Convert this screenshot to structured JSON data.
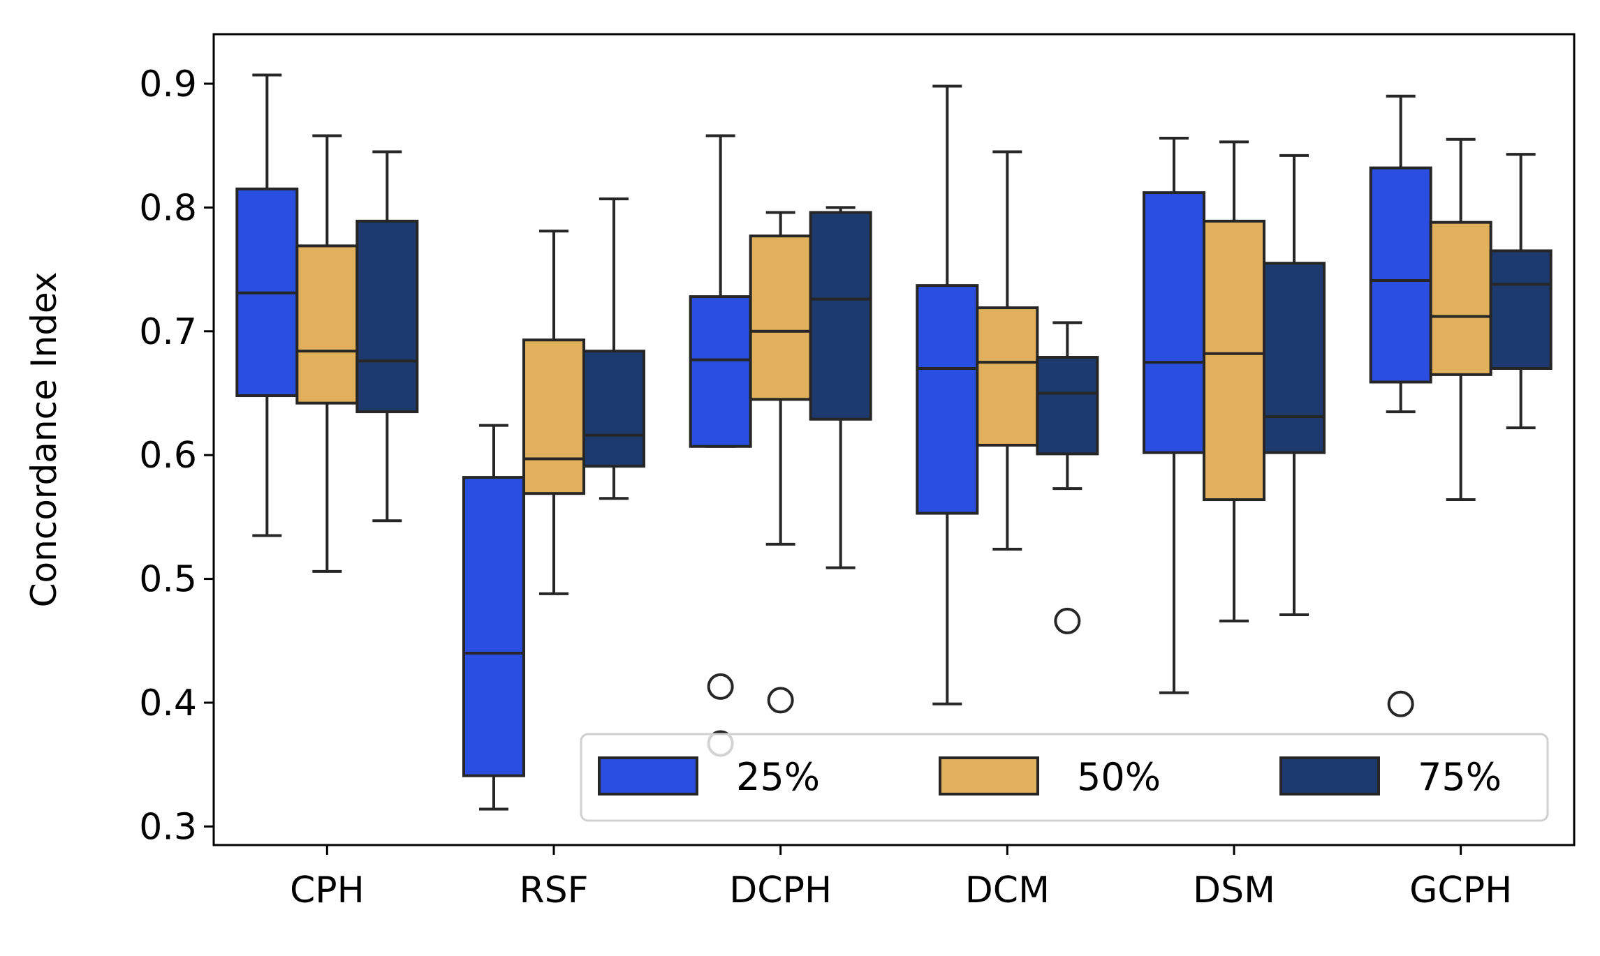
{
  "chart_data": {
    "type": "box",
    "ylabel": "Concordance Index",
    "xlabel": "",
    "ylim": [
      0.285,
      0.94
    ],
    "yticks": [
      "0.3",
      "0.4",
      "0.5",
      "0.6",
      "0.7",
      "0.8",
      "0.9"
    ],
    "categories": [
      "CPH",
      "RSF",
      "DCPH",
      "DCM",
      "DSM",
      "GCPH"
    ],
    "legend_position": "lower-right",
    "grid": false,
    "series": [
      {
        "name": "25%",
        "color": "#2a4fe0",
        "boxes": [
          {
            "whislo": 0.535,
            "q1": 0.648,
            "med": 0.731,
            "q3": 0.815,
            "whishi": 0.907,
            "fliers": []
          },
          {
            "whislo": 0.314,
            "q1": 0.341,
            "med": 0.44,
            "q3": 0.582,
            "whishi": 0.624,
            "fliers": []
          },
          {
            "whislo": 0.607,
            "q1": 0.607,
            "med": 0.677,
            "q3": 0.728,
            "whishi": 0.858,
            "fliers": [
              0.413,
              0.367
            ]
          },
          {
            "whislo": 0.399,
            "q1": 0.553,
            "med": 0.67,
            "q3": 0.737,
            "whishi": 0.898,
            "fliers": []
          },
          {
            "whislo": 0.408,
            "q1": 0.602,
            "med": 0.675,
            "q3": 0.812,
            "whishi": 0.856,
            "fliers": []
          },
          {
            "whislo": 0.635,
            "q1": 0.659,
            "med": 0.741,
            "q3": 0.832,
            "whishi": 0.89,
            "fliers": [
              0.399
            ]
          }
        ]
      },
      {
        "name": "50%",
        "color": "#e0b05c",
        "boxes": [
          {
            "whislo": 0.506,
            "q1": 0.642,
            "med": 0.684,
            "q3": 0.769,
            "whishi": 0.858,
            "fliers": []
          },
          {
            "whislo": 0.488,
            "q1": 0.569,
            "med": 0.597,
            "q3": 0.693,
            "whishi": 0.781,
            "fliers": []
          },
          {
            "whislo": 0.528,
            "q1": 0.645,
            "med": 0.7,
            "q3": 0.777,
            "whishi": 0.796,
            "fliers": [
              0.402
            ]
          },
          {
            "whislo": 0.524,
            "q1": 0.608,
            "med": 0.675,
            "q3": 0.719,
            "whishi": 0.845,
            "fliers": []
          },
          {
            "whislo": 0.466,
            "q1": 0.564,
            "med": 0.682,
            "q3": 0.789,
            "whishi": 0.853,
            "fliers": []
          },
          {
            "whislo": 0.564,
            "q1": 0.665,
            "med": 0.712,
            "q3": 0.788,
            "whishi": 0.855,
            "fliers": []
          }
        ]
      },
      {
        "name": "75%",
        "color": "#1d3a6e",
        "boxes": [
          {
            "whislo": 0.547,
            "q1": 0.635,
            "med": 0.676,
            "q3": 0.789,
            "whishi": 0.845,
            "fliers": []
          },
          {
            "whislo": 0.565,
            "q1": 0.591,
            "med": 0.616,
            "q3": 0.684,
            "whishi": 0.807,
            "fliers": []
          },
          {
            "whislo": 0.509,
            "q1": 0.629,
            "med": 0.726,
            "q3": 0.796,
            "whishi": 0.8,
            "fliers": []
          },
          {
            "whislo": 0.573,
            "q1": 0.601,
            "med": 0.65,
            "q3": 0.679,
            "whishi": 0.707,
            "fliers": [
              0.466
            ]
          },
          {
            "whislo": 0.471,
            "q1": 0.602,
            "med": 0.631,
            "q3": 0.755,
            "whishi": 0.842,
            "fliers": []
          },
          {
            "whislo": 0.622,
            "q1": 0.67,
            "med": 0.738,
            "q3": 0.765,
            "whishi": 0.843,
            "fliers": []
          }
        ]
      }
    ]
  }
}
